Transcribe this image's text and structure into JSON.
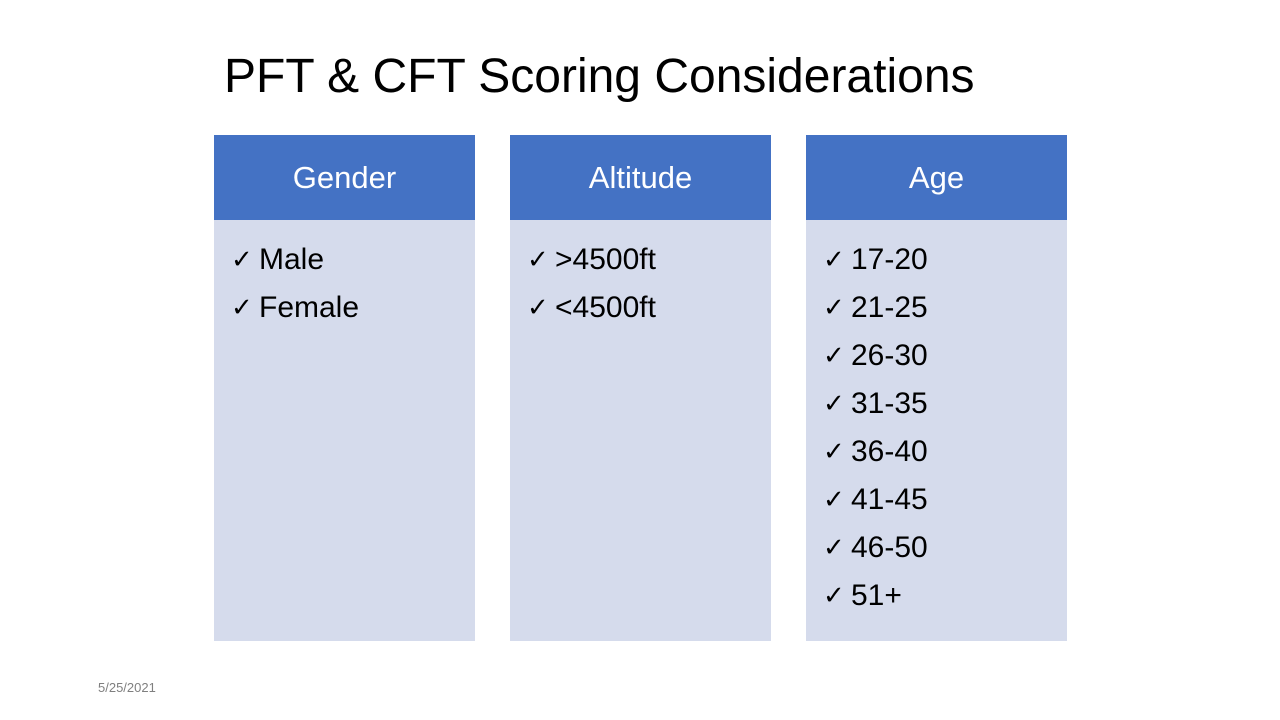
{
  "slide": {
    "title": "PFT & CFT Scoring Considerations",
    "date": "5/25/2021",
    "check_glyph": "✓",
    "colors": {
      "header_fill": "#4472c4",
      "body_fill": "#d5dbec",
      "header_text": "#ffffff"
    }
  },
  "columns": [
    {
      "header": "Gender",
      "items": [
        "Male",
        "Female"
      ]
    },
    {
      "header": "Altitude",
      "items": [
        ">4500ft",
        "<4500ft"
      ]
    },
    {
      "header": "Age",
      "items": [
        "17-20",
        "21-25",
        "26-30",
        "31-35",
        "36-40",
        "41-45",
        "46-50",
        "51+"
      ]
    }
  ]
}
